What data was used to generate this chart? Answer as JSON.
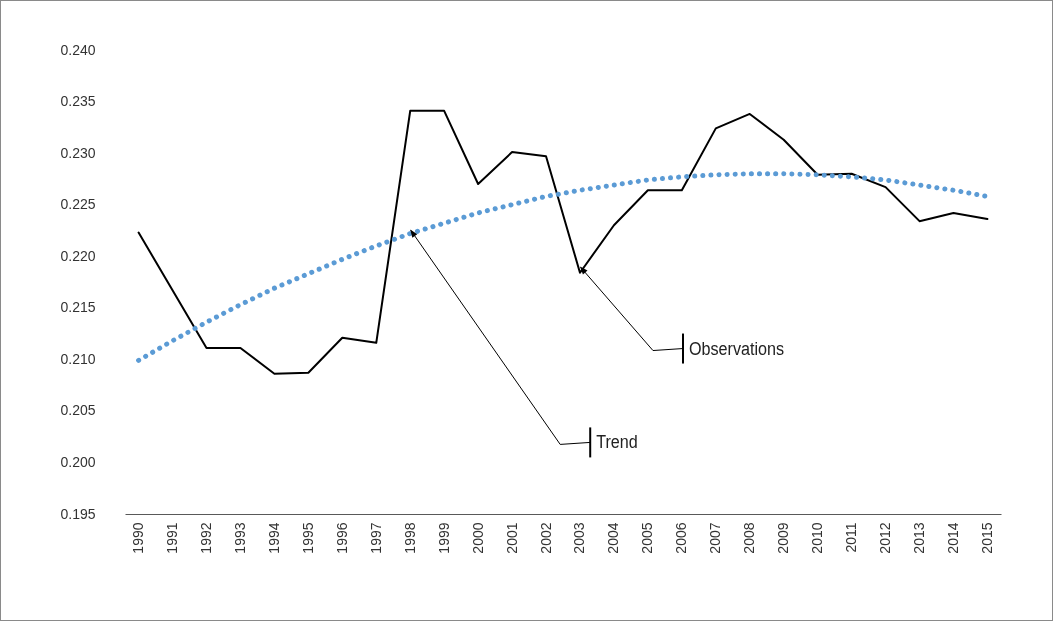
{
  "chart_data": {
    "type": "line",
    "categories": [
      "1990",
      "1991",
      "1992",
      "1993",
      "1994",
      "1995",
      "1996",
      "1997",
      "1998",
      "1999",
      "2000",
      "2001",
      "2002",
      "2003",
      "2004",
      "2005",
      "2006",
      "2007",
      "2008",
      "2009",
      "2010",
      "2011",
      "2012",
      "2013",
      "2014",
      "2015"
    ],
    "series": [
      {
        "color": "#000000",
        "line_style": "solid",
        "values": [
          0.2223,
          0.2167,
          0.2111,
          0.2111,
          0.2086,
          0.2087,
          0.2121,
          0.2116,
          0.2341,
          0.2341,
          0.227,
          0.2301,
          0.2297,
          0.2184,
          0.223,
          0.2264,
          0.2264,
          0.2324,
          0.2338,
          0.2313,
          0.2279,
          0.228,
          0.2267,
          0.2234,
          0.2242,
          0.2236
        ]
      },
      {
        "color": "#5b9bd5",
        "line_style": "dotted",
        "values": [
          0.2099,
          0.2118,
          0.2136,
          0.2153,
          0.2169,
          0.2183,
          0.2197,
          0.221,
          0.2222,
          0.2232,
          0.2242,
          0.225,
          0.2258,
          0.2264,
          0.2269,
          0.2274,
          0.2277,
          0.2279,
          0.228,
          0.228,
          0.2279,
          0.2277,
          0.2274,
          0.2269,
          0.2264,
          0.2258
        ]
      }
    ],
    "ylim": [
      0.195,
      0.24
    ],
    "yticks": [
      0.195,
      {
        "value": 0.2,
        "label": "0.200"
      },
      0.205,
      {
        "value": 0.21,
        "label": "0.210"
      },
      0.215,
      {
        "value": 0.22,
        "label": "0.220"
      },
      0.225,
      {
        "value": 0.23,
        "label": "0.230"
      },
      0.235,
      {
        "value": 0.24,
        "label": "0.240"
      }
    ],
    "grid": false,
    "annotations": [
      {
        "text": "Trend",
        "x": "1998",
        "y": 0.2226
      },
      {
        "text": "Observations",
        "x": "2003",
        "y": 0.219
      }
    ]
  }
}
